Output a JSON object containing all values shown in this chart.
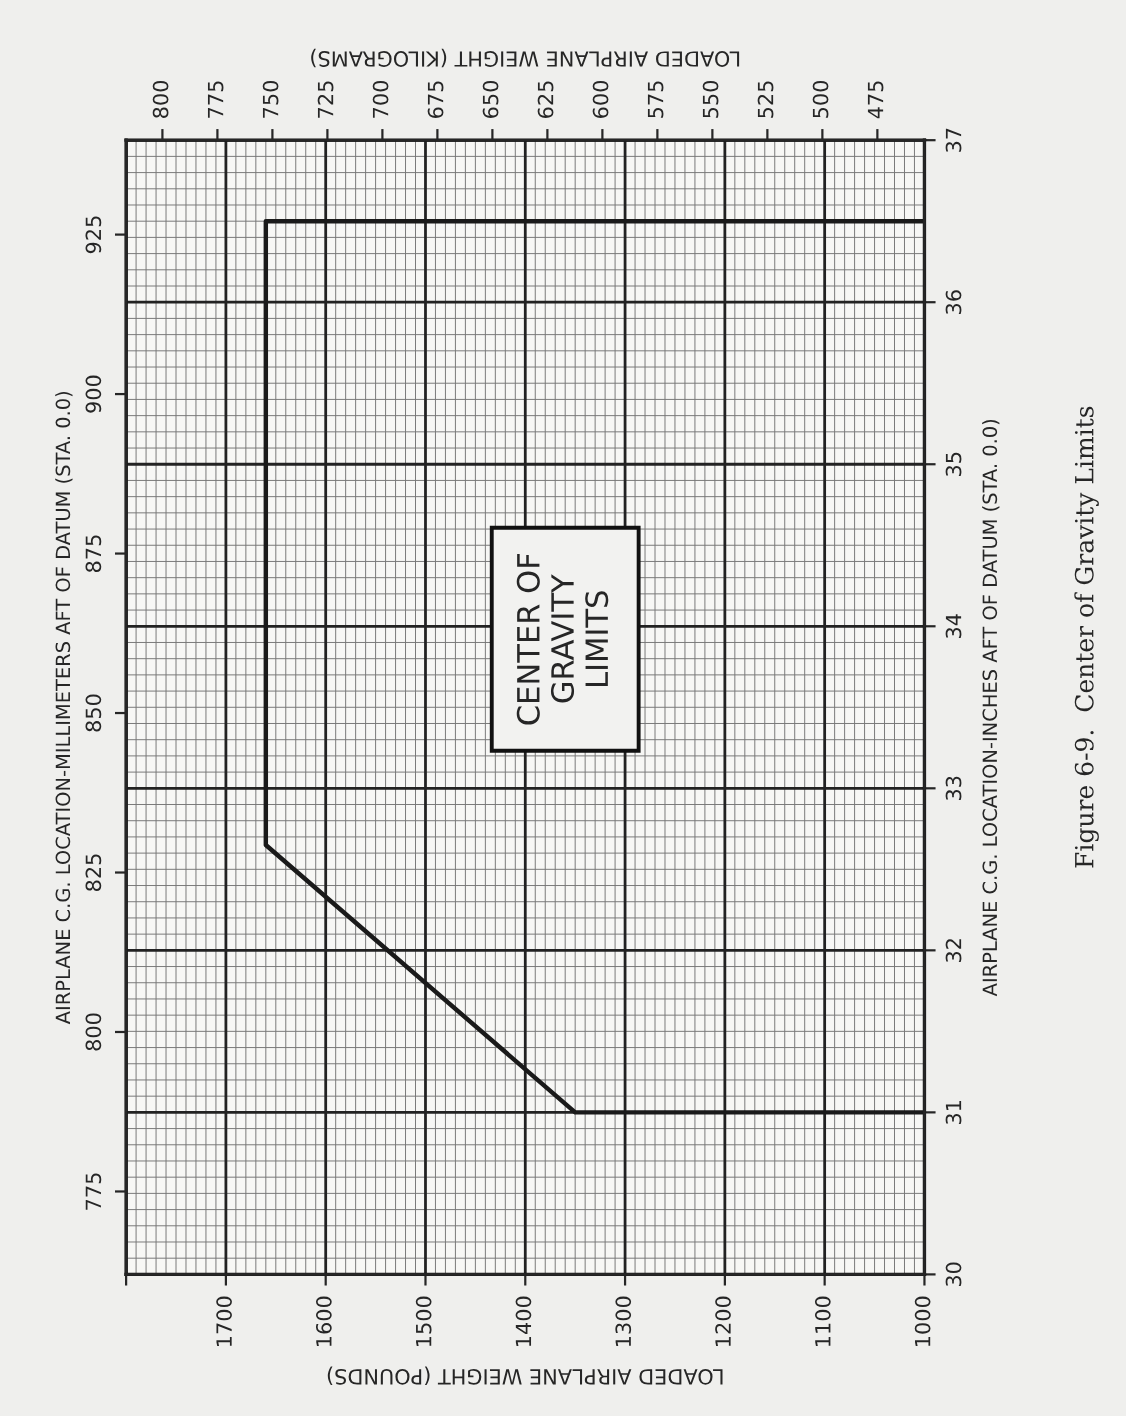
{
  "chart_data": {
    "type": "line",
    "xlabel": "LOADED AIRPLANE WEIGHT (POUNDS)",
    "x2label": "LOADED AIRPLANE WEIGHT (KILOGRAMS)",
    "ylabel": "AIRPLANE C.G. LOCATION-INCHES AFT OF DATUM (STA. 0.0)",
    "y2label": "AIRPLANE C.G. LOCATION-MILLIMETERS AFT OF DATUM (STA. 0.0)",
    "annotations": [
      "CENTER OF GRAVITY LIMITS",
      "Figure 6-9.  Center of Gravity Limits"
    ],
    "series": [
      {
        "color": "#1a1a1a",
        "x": [
          1000,
          1350,
          1660,
          1660,
          1000
        ],
        "values": [
          31.0,
          31.0,
          32.65,
          36.5,
          36.5
        ]
      }
    ],
    "xlim": [
      1800,
      1000
    ],
    "xticks": [
      {
        "value": 1800,
        "label": null
      },
      1700,
      1600,
      1500,
      1400,
      1300,
      1200,
      1100,
      1000
    ],
    "x2lim": [
      816.5,
      453.6
    ],
    "x2ticks": [
      800,
      775,
      750,
      725,
      700,
      675,
      650,
      625,
      600,
      575,
      550,
      525,
      500,
      475
    ],
    "ylim": [
      30,
      37
    ],
    "yticks": [
      30,
      31,
      32,
      33,
      34,
      35,
      36,
      37
    ],
    "y2lim": [
      762,
      939.8
    ],
    "y2ticks": [
      775,
      800,
      825,
      850,
      875,
      900,
      925
    ],
    "grid": true,
    "marker": "none",
    "line_style": "solid"
  }
}
